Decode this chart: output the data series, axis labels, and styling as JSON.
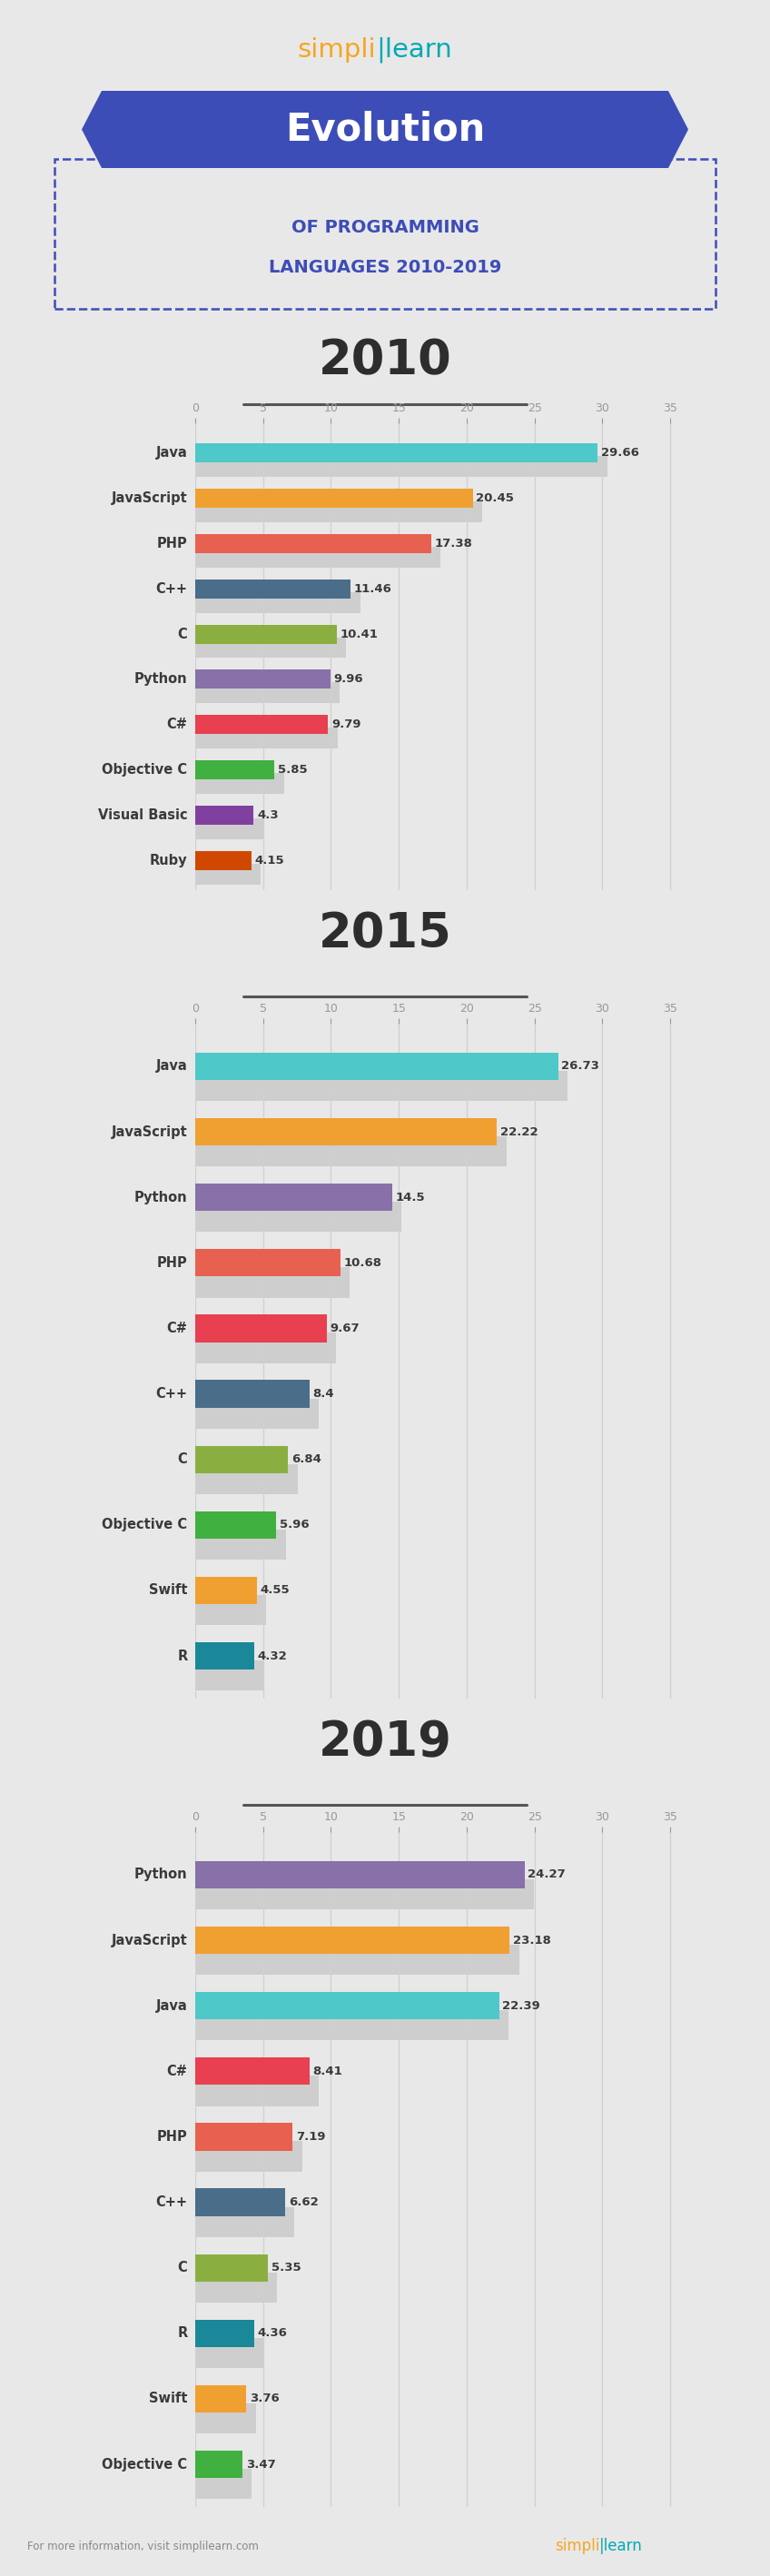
{
  "bg_color": "#e8e8e8",
  "title_banner_color": "#3d4db7",
  "title_text": "Evolution",
  "subtitle_line1": "OF PROGRAMMING",
  "subtitle_line2": "LANGUAGES 2010-2019",
  "year_title_color": "#2d2d2d",
  "charts": [
    {
      "year": "2010",
      "languages": [
        "Java",
        "JavaScript",
        "PHP",
        "C++",
        "C",
        "Python",
        "C#",
        "Objective C",
        "Visual Basic",
        "Ruby"
      ],
      "values": [
        29.66,
        20.45,
        17.38,
        11.46,
        10.41,
        9.96,
        9.79,
        5.85,
        4.3,
        4.15
      ],
      "colors": [
        "#4ec8c8",
        "#f0a030",
        "#e86050",
        "#4a6e8a",
        "#8aaf40",
        "#8870a8",
        "#e84050",
        "#40b040",
        "#8040a0",
        "#d04800"
      ]
    },
    {
      "year": "2015",
      "languages": [
        "Java",
        "JavaScript",
        "Python",
        "PHP",
        "C#",
        "C++",
        "C",
        "Objective C",
        "Swift",
        "R"
      ],
      "values": [
        26.73,
        22.22,
        14.5,
        10.68,
        9.67,
        8.4,
        6.84,
        5.96,
        4.55,
        4.32
      ],
      "colors": [
        "#4ec8c8",
        "#f0a030",
        "#8870a8",
        "#e86050",
        "#e84050",
        "#4a6e8a",
        "#8aaf40",
        "#40b040",
        "#f0a030",
        "#1a8898"
      ]
    },
    {
      "year": "2019",
      "languages": [
        "Python",
        "JavaScript",
        "Java",
        "C#",
        "PHP",
        "C++",
        "C",
        "R",
        "Swift",
        "Objective C"
      ],
      "values": [
        24.27,
        23.18,
        22.39,
        8.41,
        7.19,
        6.62,
        5.35,
        4.36,
        3.76,
        3.47
      ],
      "colors": [
        "#8870a8",
        "#f0a030",
        "#4ec8c8",
        "#e84050",
        "#e86050",
        "#4a6e8a",
        "#8aaf40",
        "#1a8898",
        "#f0a030",
        "#40b040"
      ]
    }
  ],
  "axis_color": "#999999",
  "label_color": "#3a3a3a",
  "value_color": "#3a3a3a",
  "grid_color": "#d0d0d0",
  "simpl_orange": "#f5a623",
  "simpl_teal": "#00a9b5",
  "footer_text": "For more information, visit simplilearn.com"
}
